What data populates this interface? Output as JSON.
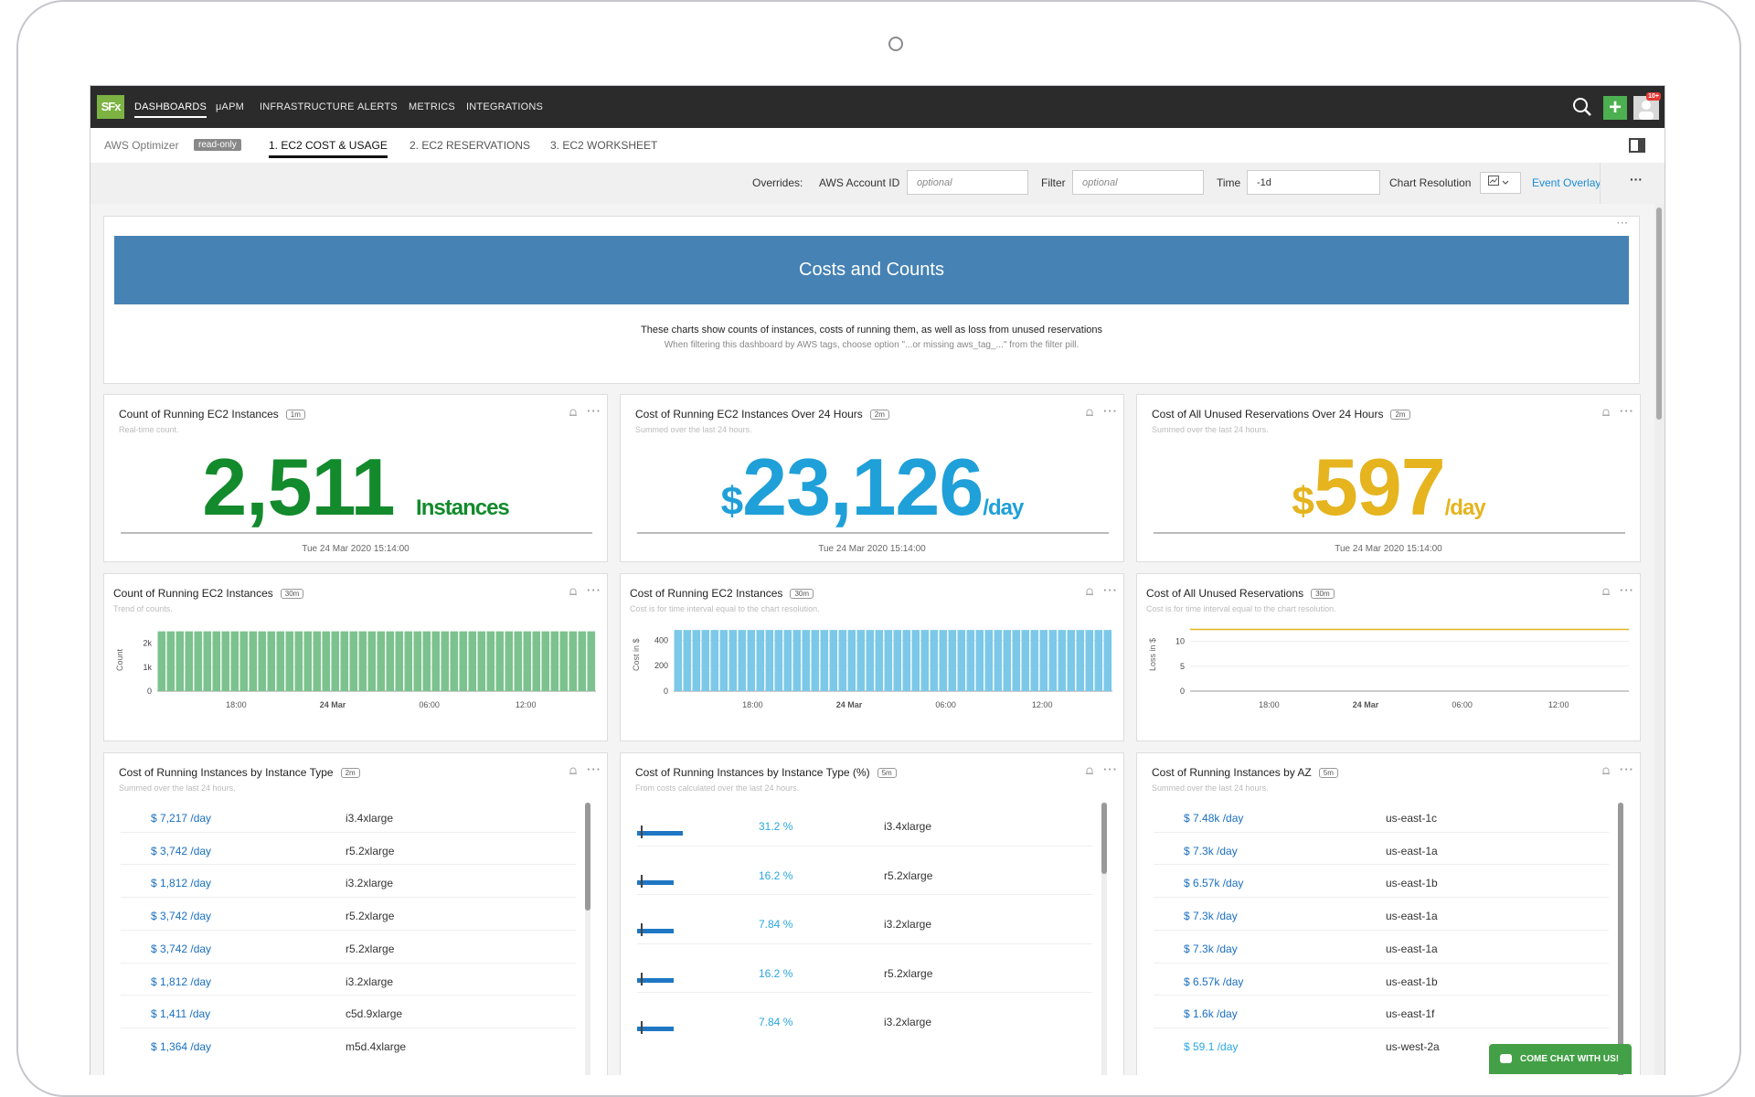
{
  "topnav": {
    "logo": "SFx",
    "items": [
      "DASHBOARDS",
      "μAPM",
      "INFRASTRUCTURE",
      "ALERTS",
      "METRICS",
      "INTEGRATIONS"
    ],
    "notification_badge": "10+"
  },
  "subnav": {
    "breadcrumb": "AWS Optimizer",
    "readonly_badge": "read-only",
    "tabs": [
      "1. EC2 COST & USAGE",
      "2. EC2 RESERVATIONS",
      "3. EC2 WORKSHEET"
    ],
    "active_tab": "1. EC2 COST & USAGE"
  },
  "overrides": {
    "label": "Overrides:",
    "aws_account_label": "AWS Account ID",
    "aws_account_placeholder": "optional",
    "filter_label": "Filter",
    "filter_placeholder": "optional",
    "time_label": "Time",
    "time_value": "-1d",
    "chart_resolution_label": "Chart Resolution",
    "event_overlay": "Event Overlay"
  },
  "banner": {
    "title": "Costs and Counts",
    "line1": "These charts show counts of instances, costs of running them, as well as loss from unused reservations",
    "line2": "When filtering this dashboard by AWS tags, choose option \"...or missing aws_tag_...\" from the filter pill."
  },
  "single_values": [
    {
      "title": "Count of Running EC2 Instances",
      "resolution": "1m",
      "subtitle": "Real-time count.",
      "prefix": "",
      "value": "2,511",
      "unit": "Instances",
      "color": "#138a2c",
      "timestamp": "Tue 24 Mar 2020 15:14:00"
    },
    {
      "title": "Cost of Running EC2 Instances Over 24 Hours",
      "resolution": "2m",
      "subtitle": "Summed over the last 24 hours.",
      "prefix": "$",
      "value": "23,126",
      "unit": "/day",
      "color": "#1fa0d8",
      "timestamp": "Tue 24 Mar 2020 15:14:00"
    },
    {
      "title": "Cost of All Unused Reservations Over 24 Hours",
      "resolution": "2m",
      "subtitle": "Summed over the last 24 hours.",
      "prefix": "$",
      "value": "597",
      "unit": "/day",
      "color": "#e5b41e",
      "timestamp": "Tue 24 Mar 2020 15:14:00"
    }
  ],
  "trend_panels": [
    {
      "title": "Count of Running EC2 Instances",
      "resolution": "30m",
      "subtitle": "Trend of counts.",
      "ylabel": "Count",
      "yticks": [
        "2k",
        "1k",
        "0"
      ]
    },
    {
      "title": "Cost of Running EC2 Instances",
      "resolution": "30m",
      "subtitle": "Cost is for time interval equal to the chart resolution.",
      "ylabel": "Cost in $",
      "yticks": [
        "400",
        "200",
        "0"
      ]
    },
    {
      "title": "Cost of All Unused Reservations",
      "resolution": "30m",
      "subtitle": "Cost is for time interval equal to the chart resolution.",
      "ylabel": "Loss in $",
      "yticks": [
        "10",
        "5",
        "0"
      ]
    }
  ],
  "chart_data": [
    {
      "type": "bar",
      "title": "Count of Running EC2 Instances",
      "ylabel": "Count",
      "ylim": [
        0,
        2600
      ],
      "x_ticks": [
        "18:00",
        "24 Mar",
        "06:00",
        "12:00"
      ],
      "bar_count": 48,
      "values_note": "",
      "values": [
        2500,
        2500,
        2500,
        2500,
        2500,
        2500,
        2500,
        2500,
        2500,
        2500,
        2500,
        2500,
        2500,
        2500,
        2500,
        2500,
        2500,
        2500,
        2500,
        2500,
        2500,
        2500,
        2500,
        2500,
        2500,
        2500,
        2500,
        2500,
        2500,
        2500,
        2500,
        2500,
        2500,
        2500,
        2500,
        2500,
        2500,
        2500,
        2500,
        2500,
        2500,
        2500,
        2500,
        2500,
        2500,
        2500,
        2500,
        2500
      ],
      "color": "#7cc28e"
    },
    {
      "type": "bar",
      "title": "Cost of Running EC2 Instances",
      "ylabel": "Cost in $",
      "ylim": [
        0,
        490
      ],
      "x_ticks": [
        "18:00",
        "24 Mar",
        "06:00",
        "12:00"
      ],
      "values": [
        482,
        482,
        482,
        482,
        482,
        482,
        482,
        482,
        482,
        482,
        482,
        482,
        482,
        482,
        482,
        482,
        482,
        482,
        482,
        482,
        482,
        482,
        482,
        482,
        482,
        482,
        482,
        482,
        482,
        482,
        482,
        482,
        482,
        482,
        482,
        482,
        482,
        482,
        482,
        482,
        482,
        482,
        482,
        482,
        482,
        482,
        482,
        482
      ],
      "color": "#7cc8e8"
    },
    {
      "type": "line",
      "title": "Cost of All Unused Reservations",
      "ylabel": "Loss in $",
      "ylim": [
        0,
        12.5
      ],
      "x_ticks": [
        "18:00",
        "24 Mar",
        "06:00",
        "12:00"
      ],
      "values": [
        12.4,
        12.4
      ],
      "color": "#e5b41e"
    }
  ],
  "list_panels": [
    {
      "title": "Cost of Running Instances by Instance Type",
      "resolution": "2m",
      "subtitle": "Summed over the last 24 hours.",
      "rows": [
        {
          "value": "$ 7,217 /day",
          "label": "i3.4xlarge"
        },
        {
          "value": "$ 3,742 /day",
          "label": "r5.2xlarge"
        },
        {
          "value": "$ 1,812 /day",
          "label": "i3.2xlarge"
        },
        {
          "value": "$ 3,742 /day",
          "label": "r5.2xlarge"
        },
        {
          "value": "$ 3,742 /day",
          "label": "r5.2xlarge"
        },
        {
          "value": "$ 1,812 /day",
          "label": "i3.2xlarge"
        },
        {
          "value": "$ 1,411 /day",
          "label": "c5d.9xlarge"
        },
        {
          "value": "$ 1,364 /day",
          "label": "m5d.4xlarge"
        }
      ]
    },
    {
      "title": "Cost of Running Instances by Instance Type (%)",
      "resolution": "5m",
      "subtitle": "From costs calculated over the last 24 hours.",
      "rows": [
        {
          "value": "31.2 %",
          "label": "i3.4xlarge",
          "fraction": 0.312
        },
        {
          "value": "16.2 %",
          "label": "r5.2xlarge",
          "fraction": 0.162
        },
        {
          "value": "7.84 %",
          "label": "i3.2xlarge",
          "fraction": 0.0784
        },
        {
          "value": "16.2 %",
          "label": "r5.2xlarge",
          "fraction": 0.162
        },
        {
          "value": "7.84 %",
          "label": "i3.2xlarge",
          "fraction": 0.0784
        }
      ]
    },
    {
      "title": "Cost of Running Instances by AZ",
      "resolution": "5m",
      "subtitle": "Summed over the last 24 hours.",
      "rows": [
        {
          "value": "$ 7.48k /day",
          "label": "us-east-1c"
        },
        {
          "value": "$ 7.3k /day",
          "label": "us-east-1a"
        },
        {
          "value": "$ 6.57k /day",
          "label": "us-east-1b"
        },
        {
          "value": "$ 7.3k /day",
          "label": "us-east-1a"
        },
        {
          "value": "$ 7.3k /day",
          "label": "us-east-1a"
        },
        {
          "value": "$ 6.57k /day",
          "label": "us-east-1b"
        },
        {
          "value": "$ 1.6k /day",
          "label": "us-east-1f"
        },
        {
          "value": "$ 59.1 /day",
          "label": "us-west-2a"
        }
      ]
    }
  ],
  "chat_button": "COME CHAT WITH US!",
  "colors": {
    "nav_bg": "#2b2b2b",
    "banner": "#4682b4",
    "link": "#1a8cd8",
    "chat": "#43a047"
  }
}
